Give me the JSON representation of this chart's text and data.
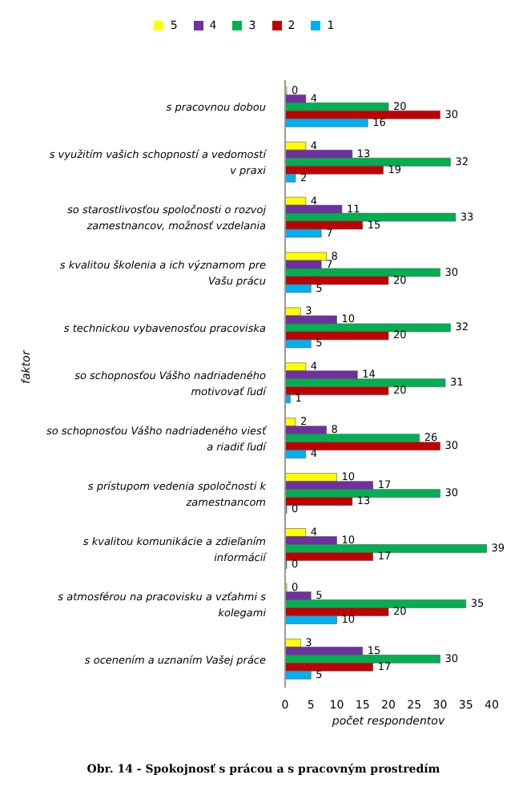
{
  "chart_data": {
    "type": "bar",
    "orientation": "horizontal",
    "xlabel": "počet respondentov",
    "ylabel": "faktor",
    "categories": [
      "s pracovnou dobou",
      "s využitím vašich schopností a vedomostí v praxi",
      "so starostlivosťou spoločnosti o rozvoj zamestnancov, možnosť vzdelania",
      "s kvalitou školenia a ich významom pre Vašu prácu",
      "s technickou vybavenosťou pracoviska",
      "so schopnosťou Vášho nadriadeného motivovať ľudí",
      "so schopnosťou Vášho nadriadeného viesť a riadiť ľudí",
      "s prístupom vedenia spoločnosti k zamestnancom",
      "s kvalitou komunikácie a zdieľaním informácií",
      "s atmosférou na pracovisku a vzťahmi s kolegami",
      "s ocenením a uznaním Vašej práce"
    ],
    "series": [
      {
        "name": "5",
        "color": "#ffff00",
        "values": [
          0,
          4,
          4,
          8,
          3,
          4,
          2,
          10,
          4,
          0,
          3
        ]
      },
      {
        "name": "4",
        "color": "#7030a0",
        "values": [
          4,
          13,
          11,
          7,
          10,
          14,
          8,
          17,
          10,
          5,
          15
        ]
      },
      {
        "name": "3",
        "color": "#00b050",
        "values": [
          20,
          32,
          33,
          30,
          32,
          31,
          26,
          30,
          39,
          35,
          30
        ]
      },
      {
        "name": "2",
        "color": "#c00000",
        "values": [
          30,
          19,
          15,
          20,
          20,
          20,
          30,
          13,
          17,
          20,
          17
        ]
      },
      {
        "name": "1",
        "color": "#00b0f0",
        "values": [
          16,
          2,
          7,
          5,
          5,
          1,
          4,
          0,
          0,
          10,
          5
        ]
      }
    ],
    "xlim": [
      0,
      40
    ],
    "xticks": [
      0,
      5,
      10,
      15,
      20,
      25,
      30,
      35,
      40
    ],
    "grid": false,
    "legend": "top",
    "data_labels": true,
    "annotations": [
      "Obr. 14 - Spokojnosť s prácou a s pracovným prostredím"
    ]
  }
}
